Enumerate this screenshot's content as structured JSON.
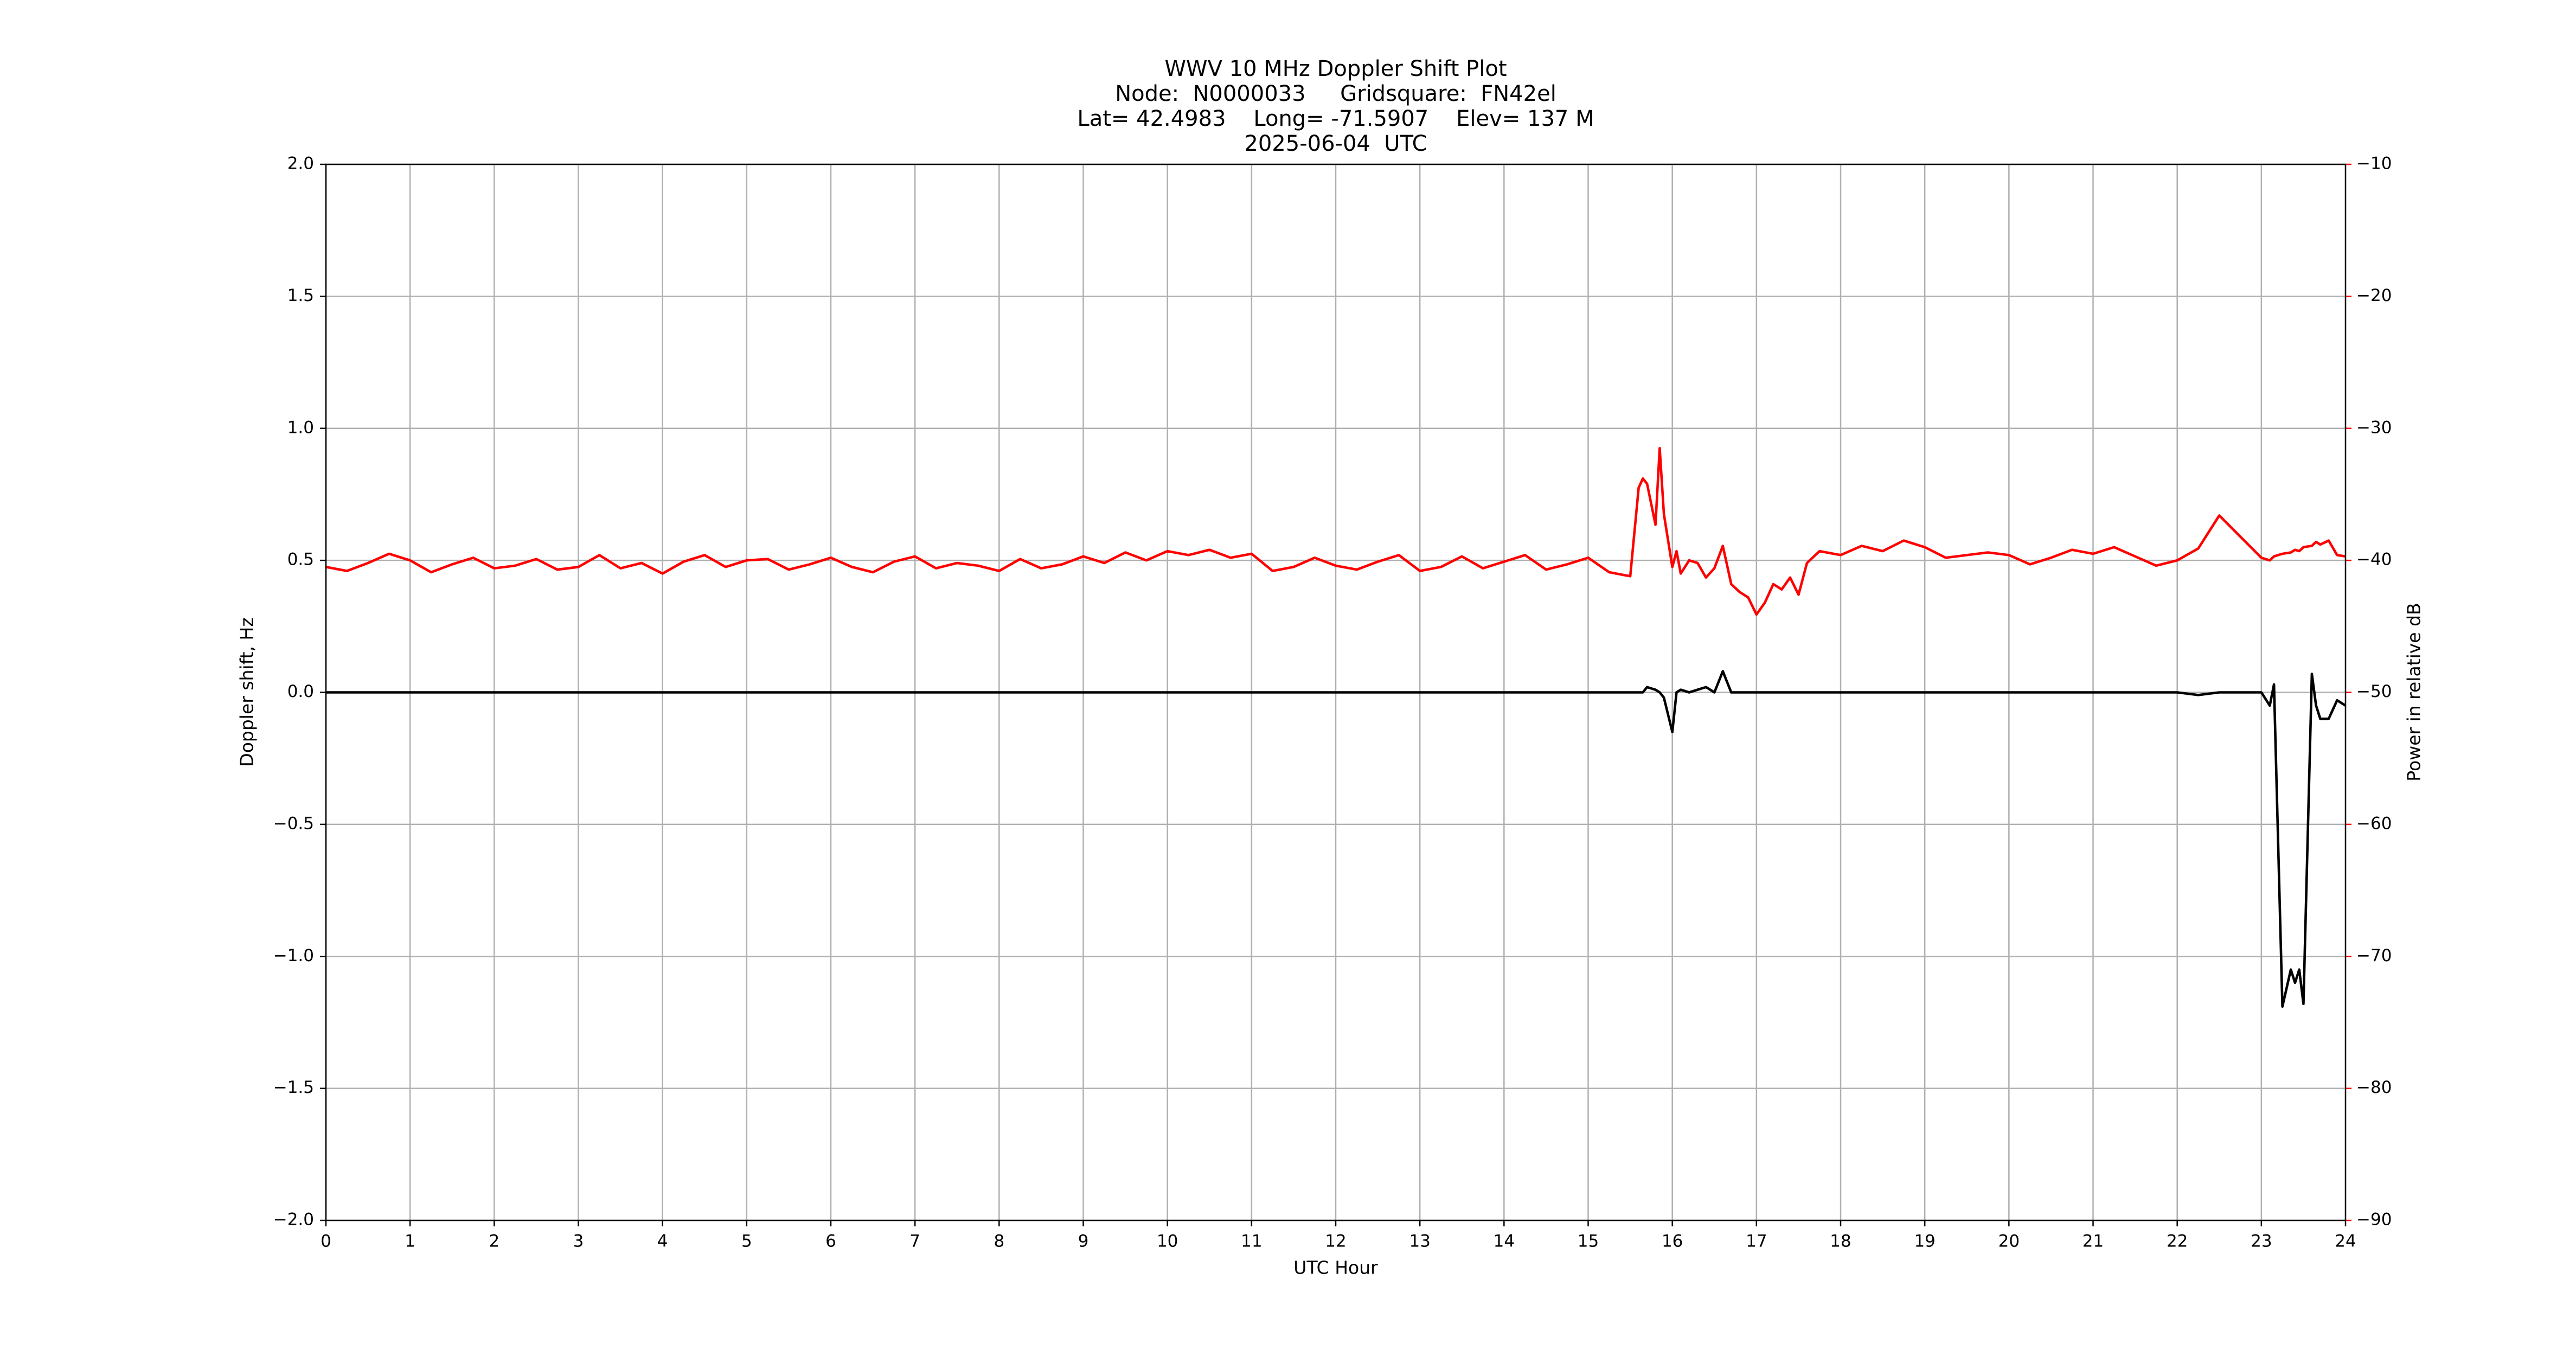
{
  "chart_data": {
    "type": "line",
    "title": [
      "WWV 10 MHz Doppler Shift Plot",
      "Node:  N0000033     Gridsquare:  FN42el",
      "Lat= 42.4983    Long= -71.5907    Elev= 137 M",
      "2025-06-04  UTC"
    ],
    "xlabel": "UTC Hour",
    "ylabel": "Doppler shift, Hz",
    "y2label": "Power in relative dB",
    "y2color": "#ff0000",
    "grid": true,
    "xlim": [
      0,
      24
    ],
    "xticks": [
      0,
      1,
      2,
      3,
      4,
      5,
      6,
      7,
      8,
      9,
      10,
      11,
      12,
      13,
      14,
      15,
      16,
      17,
      18,
      19,
      20,
      21,
      22,
      23,
      24
    ],
    "ylim": [
      -2,
      2
    ],
    "yticks": [
      {
        "value": -2,
        "label": "−2.0"
      },
      {
        "value": -1.5,
        "label": "−1.5"
      },
      {
        "value": -1,
        "label": "−1.0"
      },
      {
        "value": -0.5,
        "label": "−0.5"
      },
      {
        "value": 0,
        "label": "0.0"
      },
      {
        "value": 0.5,
        "label": "0.5"
      },
      {
        "value": 1,
        "label": "1.0"
      },
      {
        "value": 1.5,
        "label": "1.5"
      },
      {
        "value": 2,
        "label": "2.0"
      }
    ],
    "y2lim": [
      -90,
      -10
    ],
    "y2ticks": [
      {
        "value": -90,
        "label": "−90"
      },
      {
        "value": -80,
        "label": "−80"
      },
      {
        "value": -70,
        "label": "−70"
      },
      {
        "value": -60,
        "label": "−60"
      },
      {
        "value": -50,
        "label": "−50"
      },
      {
        "value": -40,
        "label": "−40"
      },
      {
        "value": -30,
        "label": "−30"
      },
      {
        "value": -20,
        "label": "−20"
      },
      {
        "value": -10,
        "label": "−10"
      }
    ],
    "x": [
      0,
      0.25,
      0.5,
      0.75,
      1,
      1.25,
      1.5,
      1.75,
      2,
      2.25,
      2.5,
      2.75,
      3,
      3.25,
      3.5,
      3.75,
      4,
      4.25,
      4.5,
      4.75,
      5,
      5.25,
      5.5,
      5.75,
      6,
      6.25,
      6.5,
      6.75,
      7,
      7.25,
      7.5,
      7.75,
      8,
      8.25,
      8.5,
      8.75,
      9,
      9.25,
      9.5,
      9.75,
      10,
      10.25,
      10.5,
      10.75,
      11,
      11.25,
      11.5,
      11.75,
      12,
      12.25,
      12.5,
      12.75,
      13,
      13.25,
      13.5,
      13.75,
      14,
      14.25,
      14.5,
      14.75,
      15,
      15.25,
      15.5,
      15.6,
      15.65,
      15.7,
      15.8,
      15.85,
      15.9,
      16,
      16.05,
      16.1,
      16.2,
      16.3,
      16.4,
      16.5,
      16.6,
      16.7,
      16.8,
      16.9,
      17,
      17.1,
      17.2,
      17.3,
      17.4,
      17.5,
      17.6,
      17.75,
      18,
      18.25,
      18.5,
      18.75,
      19,
      19.25,
      19.5,
      19.75,
      20,
      20.25,
      20.5,
      20.75,
      21,
      21.25,
      21.5,
      21.75,
      22,
      22.25,
      22.5,
      22.75,
      23,
      23.1,
      23.15,
      23.25,
      23.35,
      23.4,
      23.45,
      23.5,
      23.6,
      23.65,
      23.7,
      23.8,
      23.9,
      24
    ],
    "series": [
      {
        "color": "#000000",
        "values": [
          0,
          0,
          0,
          0,
          0,
          0,
          0,
          0,
          0,
          0,
          0,
          0,
          0,
          0,
          0,
          0,
          0,
          0,
          0,
          0,
          0,
          0,
          0,
          0,
          0,
          0,
          0,
          0,
          0,
          0,
          0,
          0,
          0,
          0,
          0,
          0,
          0,
          0,
          0,
          0,
          0,
          0,
          0,
          0,
          0,
          0,
          0,
          0,
          0,
          0,
          0,
          0,
          0,
          0,
          0,
          0,
          0,
          0,
          0,
          0,
          0,
          0,
          0,
          0,
          0,
          0.02,
          0.01,
          0,
          -0.02,
          -0.15,
          0,
          0.01,
          0,
          0.01,
          0.02,
          0,
          0.08,
          0,
          0,
          0,
          0,
          0,
          0,
          0,
          0,
          0,
          0,
          0,
          0,
          0,
          0,
          0,
          0,
          0,
          0,
          0,
          0,
          0,
          0,
          0,
          0,
          0,
          0,
          0,
          0,
          -0.01,
          0,
          0,
          0,
          -0.05,
          0.03,
          -1.19,
          -1.05,
          -1.1,
          -1.05,
          -1.18,
          0.07,
          -0.05,
          -0.1,
          -0.1,
          -0.03,
          -0.05
        ]
      },
      {
        "color": "#ff0000",
        "axis": "y2",
        "values": [
          -40.5,
          -40.8,
          -40.2,
          -39.5,
          -40.0,
          -40.9,
          -40.3,
          -39.8,
          -40.6,
          -40.4,
          -39.9,
          -40.7,
          -40.5,
          -39.6,
          -40.6,
          -40.2,
          -41.0,
          -40.1,
          -39.6,
          -40.5,
          -40.0,
          -39.9,
          -40.7,
          -40.3,
          -39.8,
          -40.5,
          -40.9,
          -40.1,
          -39.7,
          -40.6,
          -40.2,
          -40.4,
          -40.8,
          -39.9,
          -40.6,
          -40.3,
          -39.7,
          -40.2,
          -39.4,
          -40.0,
          -39.3,
          -39.6,
          -39.2,
          -39.8,
          -39.5,
          -40.8,
          -40.5,
          -39.8,
          -40.4,
          -40.7,
          -40.1,
          -39.6,
          -40.8,
          -40.5,
          -39.7,
          -40.6,
          -40.1,
          -39.6,
          -40.7,
          -40.3,
          -39.8,
          -40.9,
          -41.2,
          -34.5,
          -33.8,
          -34.2,
          -37.3,
          -31.5,
          -36.5,
          -40.5,
          -39.3,
          -41.0,
          -40.0,
          -40.2,
          -41.3,
          -40.6,
          -38.9,
          -41.8,
          -42.4,
          -42.8,
          -44.1,
          -43.2,
          -41.8,
          -42.2,
          -41.3,
          -42.6,
          -40.2,
          -39.3,
          -39.6,
          -38.9,
          -39.3,
          -38.5,
          -39.0,
          -39.8,
          -39.6,
          -39.4,
          -39.6,
          -40.3,
          -39.8,
          -39.2,
          -39.5,
          -39.0,
          -39.7,
          -40.4,
          -40.0,
          -39.1,
          -36.6,
          -38.2,
          -39.8,
          -40.0,
          -39.7,
          -39.5,
          -39.4,
          -39.2,
          -39.3,
          -39.0,
          -38.9,
          -38.6,
          -38.8,
          -38.5,
          -39.6,
          -39.7
        ]
      }
    ]
  }
}
